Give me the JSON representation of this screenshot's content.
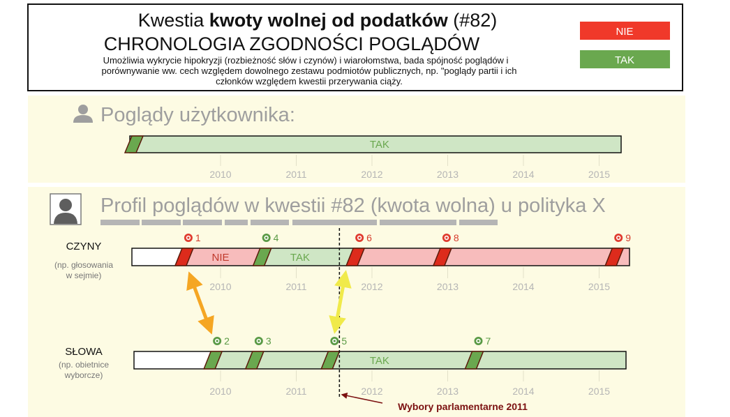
{
  "header": {
    "title_prefix": "Kwestia ",
    "title_bold": "kwoty wolnej od podatków",
    "title_suffix": " (#82)",
    "subtitle": "CHRONOLOGIA ZGODNOŚCI POGLĄDÓW",
    "description": [
      "Umożliwia wykrycie hipokryzji (rozbieżność słów i czynów) i wiarołomstwa, bada spójność poglądów i",
      "porównywanie ww. cech względem dowolnego zestawu podmiotów publicznych, np. \"poglądy partii i ich",
      "członków względem kwestii przerywania ciąży."
    ],
    "legend": [
      {
        "label": "NIE",
        "color": "#f0392a"
      },
      {
        "label": "TAK",
        "color": "#6aa84f"
      }
    ]
  },
  "user_section": {
    "title": "Poglądy użytkownika:",
    "bar_label": "TAK",
    "years": [
      "2010",
      "2011",
      "2012",
      "2013",
      "2014",
      "2015"
    ]
  },
  "politician_section": {
    "title": "Profil poglądów w kwestii #82 (kwota wolna) u polityka X",
    "rows": [
      {
        "id": "czyny",
        "label": "CZYNY",
        "sublabel": [
          "(np. głosowania",
          "w sejmie)"
        ],
        "segment_labels": [
          {
            "text": "NIE",
            "at": 2010.0
          },
          {
            "text": "TAK",
            "at": 2011.05
          }
        ],
        "markers": [
          {
            "num": "1",
            "pos": 2009.52,
            "type": "NIE"
          },
          {
            "num": "4",
            "pos": 2010.55,
            "type": "TAK"
          },
          {
            "num": "6",
            "pos": 2011.78,
            "type": "NIE"
          },
          {
            "num": "8",
            "pos": 2012.93,
            "type": "NIE"
          },
          {
            "num": "9",
            "pos": 2015.2,
            "type": "NIE"
          }
        ]
      },
      {
        "id": "slowa",
        "label": "SŁOWA",
        "sublabel": [
          "(np. obietnice",
          "wyborcze)"
        ],
        "segment_labels": [
          {
            "text": "TAK",
            "at": 2012.1
          }
        ],
        "markers": [
          {
            "num": "2",
            "pos": 2009.9,
            "type": "TAK"
          },
          {
            "num": "3",
            "pos": 2010.45,
            "type": "TAK"
          },
          {
            "num": "5",
            "pos": 2011.45,
            "type": "TAK"
          },
          {
            "num": "7",
            "pos": 2013.35,
            "type": "TAK"
          }
        ]
      }
    ],
    "years": [
      "2010",
      "2011",
      "2012",
      "2013",
      "2014",
      "2015"
    ],
    "election": {
      "label": "Wybory parlamentarne 2011",
      "pos": 2011.57
    }
  },
  "colors": {
    "nie_solid": "#dd2b1c",
    "nie_light": "#f7bcbc",
    "tak_solid": "#6aa84f",
    "tak_light": "#cfe6c5",
    "section_bg": "#fdfbe3",
    "arrow_orange": "#f5a623",
    "arrow_yellow": "#f0ea4a"
  }
}
